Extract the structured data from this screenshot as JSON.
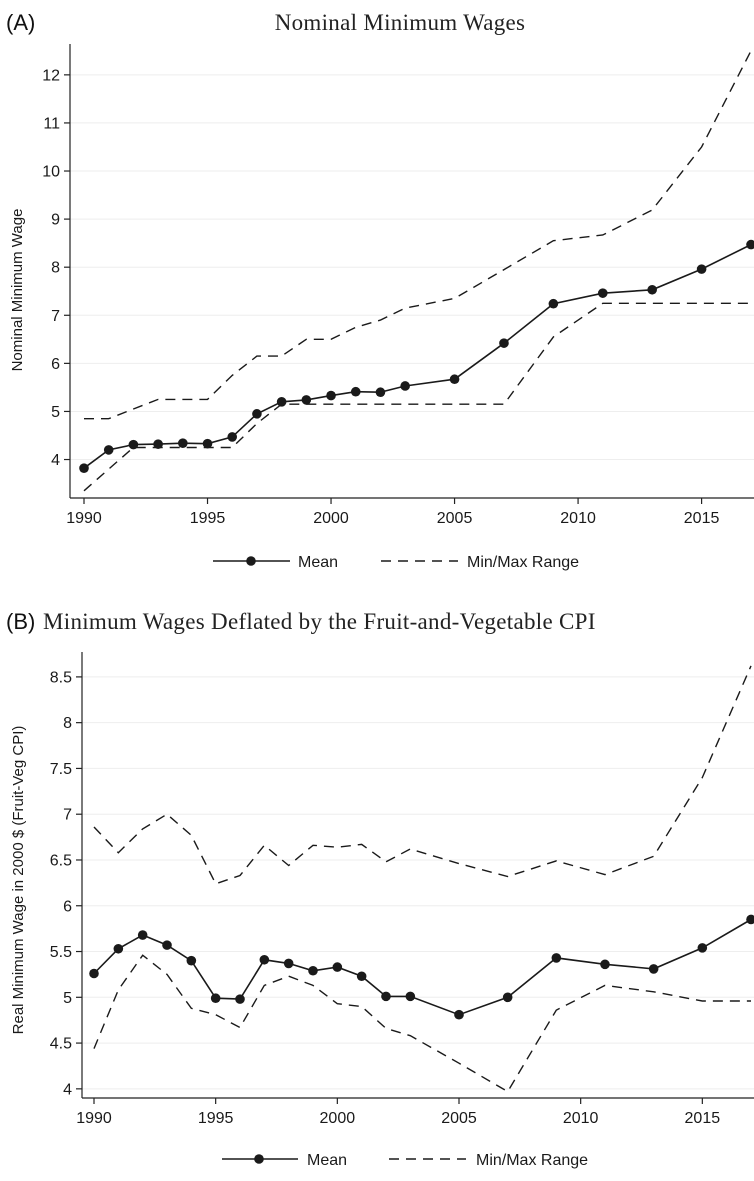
{
  "chart_data": [
    {
      "type": "line",
      "panel": "(A)",
      "title": "Nominal Minimum Wages",
      "xlabel": "",
      "ylabel": "Nominal Minimum Wage",
      "xlim": [
        1990,
        2017
      ],
      "ylim": [
        3.2,
        12.6
      ],
      "xticks": [
        1990,
        1995,
        2000,
        2005,
        2010,
        2015
      ],
      "yticks": [
        4,
        5,
        6,
        7,
        8,
        9,
        10,
        11,
        12
      ],
      "grid": true,
      "legend_position": "bottom",
      "series": [
        {
          "name": "Mean",
          "style": "solid-markers",
          "x": [
            1990,
            1991,
            1992,
            1993,
            1994,
            1995,
            1996,
            1997,
            1998,
            1999,
            2000,
            2001,
            2002,
            2003,
            2005,
            2007,
            2009,
            2011,
            2013,
            2015,
            2017
          ],
          "y": [
            3.82,
            4.2,
            4.31,
            4.32,
            4.34,
            4.33,
            4.47,
            4.95,
            5.2,
            5.24,
            5.33,
            5.41,
            5.4,
            5.53,
            5.67,
            6.42,
            7.24,
            7.46,
            7.53,
            7.96,
            8.47
          ]
        },
        {
          "name": "Min/Max Range",
          "style": "dashed",
          "x": [
            1990,
            1991,
            1992,
            1993,
            1994,
            1995,
            1996,
            1997,
            1998,
            1999,
            2000,
            2001,
            2002,
            2003,
            2005,
            2007,
            2009,
            2011,
            2013,
            2015,
            2017
          ],
          "y": [
            4.85,
            4.85,
            5.05,
            5.25,
            5.25,
            5.25,
            5.75,
            6.15,
            6.15,
            6.5,
            6.5,
            6.75,
            6.9,
            7.15,
            7.35,
            7.95,
            8.55,
            8.67,
            9.19,
            10.5,
            12.5
          ]
        },
        {
          "name": "",
          "style": "dashed",
          "x": [
            1990,
            1991,
            1992,
            1993,
            1994,
            1995,
            1996,
            1997,
            1998,
            1999,
            2000,
            2001,
            2002,
            2003,
            2005,
            2007,
            2009,
            2011,
            2013,
            2015,
            2017
          ],
          "y": [
            3.35,
            3.8,
            4.25,
            4.25,
            4.25,
            4.25,
            4.25,
            4.75,
            5.15,
            5.15,
            5.15,
            5.15,
            5.15,
            5.15,
            5.15,
            5.15,
            6.55,
            7.25,
            7.25,
            7.25,
            7.25
          ]
        }
      ]
    },
    {
      "type": "line",
      "panel": "(B)",
      "title": "Minimum Wages Deflated by the Fruit-and-Vegetable CPI",
      "xlabel": "",
      "ylabel": "Real Minimum Wage in 2000 $ (Fruit-Veg CPI)",
      "xlim": [
        1990,
        2017
      ],
      "ylim": [
        3.9,
        8.75
      ],
      "xticks": [
        1990,
        1995,
        2000,
        2005,
        2010,
        2015
      ],
      "yticks": [
        4,
        4.5,
        5,
        5.5,
        6,
        6.5,
        7,
        7.5,
        8,
        8.5
      ],
      "ytick_labels": [
        "4",
        "4.5",
        "5",
        "5.5",
        "6",
        "6.5",
        "7",
        "7.5",
        "8",
        "8.5"
      ],
      "grid": true,
      "legend_position": "bottom",
      "series": [
        {
          "name": "Mean",
          "style": "solid-markers",
          "x": [
            1990,
            1991,
            1992,
            1993,
            1994,
            1995,
            1996,
            1997,
            1998,
            1999,
            2000,
            2001,
            2002,
            2003,
            2005,
            2007,
            2009,
            2011,
            2013,
            2015,
            2017
          ],
          "y": [
            5.26,
            5.53,
            5.68,
            5.57,
            5.4,
            4.99,
            4.98,
            5.41,
            5.37,
            5.29,
            5.33,
            5.23,
            5.01,
            5.01,
            4.81,
            5.0,
            5.43,
            5.36,
            5.31,
            5.54,
            5.85
          ]
        },
        {
          "name": "Min/Max Range",
          "style": "dashed",
          "x": [
            1990,
            1991,
            1992,
            1993,
            1994,
            1995,
            1996,
            1997,
            1998,
            1999,
            2000,
            2001,
            2002,
            2003,
            2005,
            2007,
            2009,
            2011,
            2013,
            2015,
            2017
          ],
          "y": [
            6.86,
            6.58,
            6.84,
            7.0,
            6.77,
            6.24,
            6.33,
            6.66,
            6.44,
            6.66,
            6.64,
            6.67,
            6.48,
            6.62,
            6.46,
            6.32,
            6.49,
            6.34,
            6.54,
            7.4,
            8.62
          ]
        },
        {
          "name": "",
          "style": "dashed",
          "x": [
            1990,
            1991,
            1992,
            1993,
            1994,
            1995,
            1996,
            1997,
            1998,
            1999,
            2000,
            2001,
            2002,
            2003,
            2005,
            2007,
            2009,
            2011,
            2013,
            2015,
            2017
          ],
          "y": [
            4.44,
            5.08,
            5.46,
            5.25,
            4.88,
            4.81,
            4.67,
            5.13,
            5.23,
            5.13,
            4.93,
            4.9,
            4.66,
            4.58,
            4.28,
            3.97,
            4.86,
            5.13,
            5.06,
            4.96,
            4.96
          ]
        }
      ]
    }
  ]
}
